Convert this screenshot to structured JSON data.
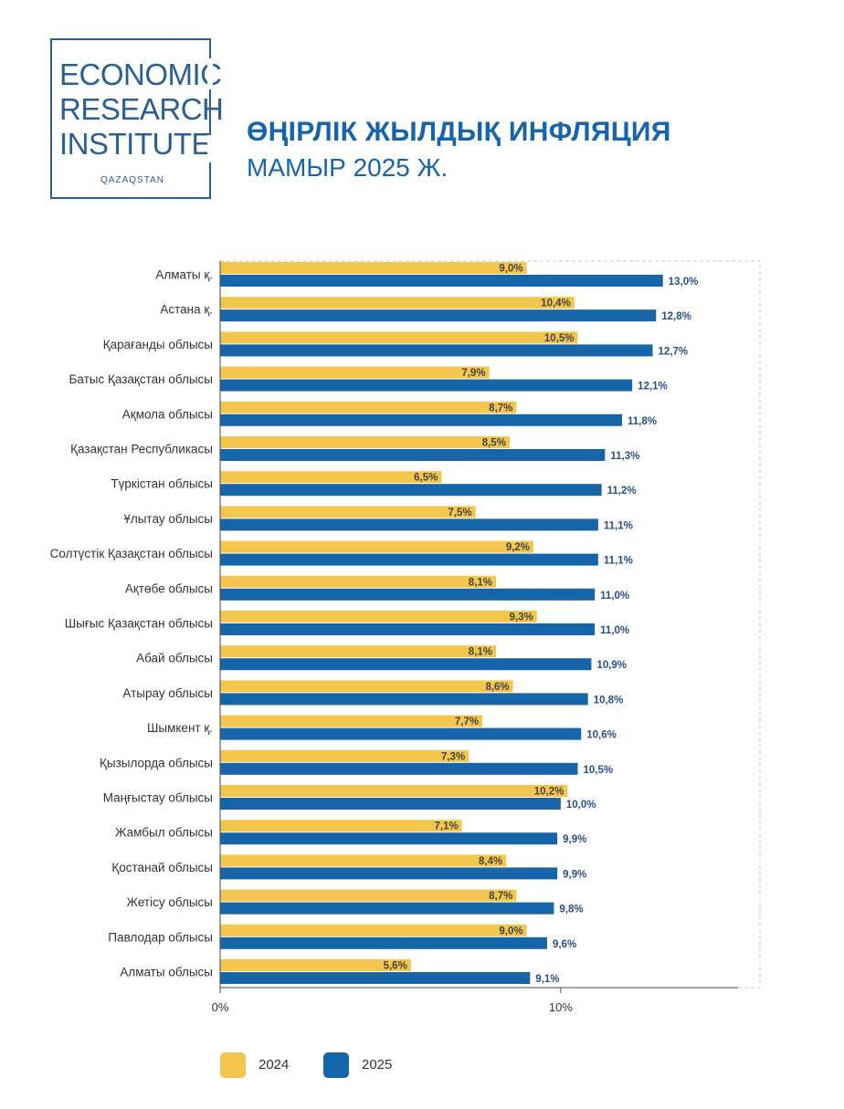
{
  "logo": {
    "line1": "ECONOMIC",
    "line2": "RESEARCH",
    "line3": "INSTITUTE",
    "sub": "QAZAQSTAN"
  },
  "header": {
    "title": "ӨҢІРЛІК ЖЫЛДЫҚ ИНФЛЯЦИЯ",
    "subtitle": "МАМЫР 2025 Ж."
  },
  "colors": {
    "series_2024": "#f3c74e",
    "series_2025": "#1565a8",
    "label_2025": "#2a4f87",
    "label_2024": "#444444"
  },
  "chart_data": {
    "type": "bar",
    "orientation": "horizontal",
    "categories": [
      "Алматы қ.",
      "Астана қ.",
      "Қарағанды облысы",
      "Батыс Қазақстан облысы",
      "Ақмола облысы",
      "Қазақстан Республикасы",
      "Түркістан облысы",
      "Ұлытау облысы",
      "Солтүстік Қазақстан облысы",
      "Ақтөбе облысы",
      "Шығыс Қазақстан облысы",
      "Абай облысы",
      "Атырау облысы",
      "Шымкент қ.",
      "Қызылорда облысы",
      "Маңғыстау облысы",
      "Жамбыл облысы",
      "Қостанай облысы",
      "Жетісу облысы",
      "Павлодар облысы",
      "Алматы облысы"
    ],
    "series": [
      {
        "name": "2024",
        "values": [
          9.0,
          10.4,
          10.5,
          7.9,
          8.7,
          8.5,
          6.5,
          7.5,
          9.2,
          8.1,
          9.3,
          8.1,
          8.6,
          7.7,
          7.3,
          10.2,
          7.1,
          8.4,
          8.7,
          9.0,
          5.6
        ],
        "labels": [
          "9,0%",
          "10,4%",
          "10,5%",
          "7,9%",
          "8,7%",
          "8,5%",
          "6,5%",
          "7,5%",
          "9,2%",
          "8,1%",
          "9,3%",
          "8,1%",
          "8,6%",
          "7,7%",
          "7,3%",
          "10,2%",
          "7,1%",
          "8,4%",
          "8,7%",
          "9,0%",
          "5,6%"
        ]
      },
      {
        "name": "2025",
        "values": [
          13.0,
          12.8,
          12.7,
          12.1,
          11.8,
          11.3,
          11.2,
          11.1,
          11.1,
          11.0,
          11.0,
          10.9,
          10.8,
          10.6,
          10.5,
          10.0,
          9.9,
          9.9,
          9.8,
          9.6,
          9.1
        ],
        "labels": [
          "13,0%",
          "12,8%",
          "12,7%",
          "12,1%",
          "11,8%",
          "11,3%",
          "11,2%",
          "11,1%",
          "11,1%",
          "11,0%",
          "11,0%",
          "10,9%",
          "10,8%",
          "10,6%",
          "10,5%",
          "10,0%",
          "9,9%",
          "9,9%",
          "9,8%",
          "9,6%",
          "9,1%"
        ]
      }
    ],
    "xlim": [
      0,
      15.85
    ],
    "xticks": [
      0,
      10
    ],
    "xtick_labels": [
      "0%",
      "10%"
    ],
    "xlabel": "",
    "ylabel": "",
    "grid": false,
    "legend": {
      "placement": "bottom",
      "entries": [
        "2024",
        "2025"
      ]
    }
  }
}
